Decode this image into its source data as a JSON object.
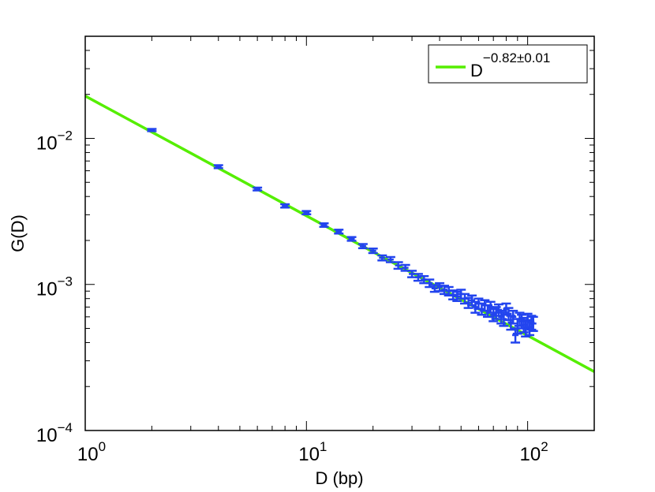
{
  "chart_data": {
    "type": "scatter",
    "xlabel": "D (bp)",
    "ylabel": "G(D)",
    "xscale": "log",
    "yscale": "log",
    "xlim": [
      1,
      200
    ],
    "ylim": [
      0.0001,
      0.05
    ],
    "grid": false,
    "legend_position": "top-right",
    "x_ticks": [
      {
        "value": 1,
        "base": "10",
        "exp": "0"
      },
      {
        "value": 10,
        "base": "10",
        "exp": "1"
      },
      {
        "value": 100,
        "base": "10",
        "exp": "2"
      }
    ],
    "y_ticks": [
      {
        "value": 0.0001,
        "base": "10",
        "exp": "−4"
      },
      {
        "value": 0.001,
        "base": "10",
        "exp": "−3"
      },
      {
        "value": 0.01,
        "base": "10",
        "exp": "−2"
      }
    ],
    "series": [
      {
        "kind": "line",
        "color": "#55ee00",
        "legend_base": "D",
        "legend_exp": "−0.82±0.01",
        "x": [
          1,
          200
        ],
        "y": [
          0.0195,
          0.000253
        ]
      },
      {
        "kind": "errorbar",
        "color": "#2244ee",
        "x": [
          2,
          4,
          6,
          8,
          10,
          12,
          14,
          16,
          18,
          20,
          22,
          24,
          26,
          28,
          30,
          32,
          34,
          36,
          38,
          40,
          42,
          44,
          46,
          48,
          50,
          52,
          54,
          56,
          58,
          60,
          62,
          64,
          66,
          68,
          70,
          72,
          74,
          76,
          78,
          80,
          82,
          84,
          86,
          88,
          90,
          92,
          94,
          96,
          98,
          100,
          102,
          104,
          106
        ],
        "y": [
          0.0114,
          0.0064,
          0.0045,
          0.00345,
          0.0031,
          0.00255,
          0.0023,
          0.00205,
          0.00183,
          0.0017,
          0.00152,
          0.00148,
          0.00135,
          0.0013,
          0.00118,
          0.00112,
          0.00108,
          0.00102,
          0.00094,
          0.00096,
          0.00092,
          0.0009,
          0.00085,
          0.00083,
          0.00086,
          0.0008,
          0.00075,
          0.00078,
          0.0007,
          0.00074,
          0.00068,
          0.00072,
          0.00066,
          0.0007,
          0.00062,
          0.00064,
          0.00067,
          0.0006,
          0.00058,
          0.00068,
          0.00063,
          0.00055,
          0.0006,
          0.00045,
          0.00052,
          0.00058,
          0.00056,
          0.00053,
          0.0005,
          0.00057,
          0.00051,
          0.00055,
          0.00054
        ],
        "yerr": [
          0.0002,
          0.00015,
          0.0001,
          9e-05,
          8e-05,
          7e-05,
          7e-05,
          6e-05,
          6e-05,
          6e-05,
          6e-05,
          6e-05,
          7e-05,
          6e-05,
          6e-05,
          6e-05,
          6e-05,
          6e-05,
          5e-05,
          6e-05,
          6e-05,
          6e-05,
          6e-05,
          6e-05,
          6e-05,
          6e-05,
          6e-05,
          6e-05,
          6e-05,
          6e-05,
          6e-05,
          6e-05,
          6e-05,
          6e-05,
          6e-05,
          6e-05,
          6e-05,
          6e-05,
          6e-05,
          6e-05,
          6e-05,
          6e-05,
          6e-05,
          5e-05,
          6e-05,
          6e-05,
          6e-05,
          6e-05,
          6e-05,
          6e-05,
          6e-05,
          6e-05,
          6e-05
        ]
      }
    ]
  }
}
